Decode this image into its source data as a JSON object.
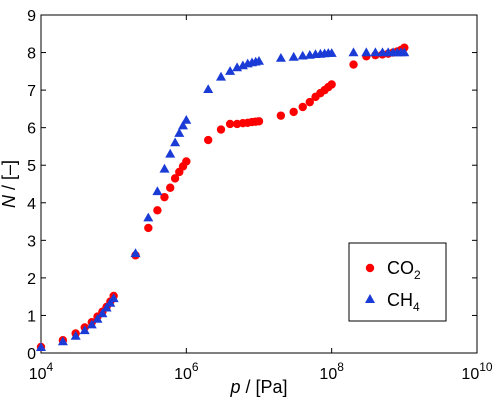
{
  "chart_data": {
    "type": "scatter",
    "title": "",
    "xlabel_var": "p",
    "xlabel_unit": " / [Pa]",
    "ylabel_var": "N",
    "ylabel_unit": " / [–]",
    "xscale": "log",
    "xlim": [
      10000,
      10000000000
    ],
    "ylim": [
      0,
      9
    ],
    "grid": false,
    "legend_position": "lower-right",
    "x_ticks": [
      {
        "value": 10000,
        "base": "10",
        "exp": "4"
      },
      {
        "value": 1000000,
        "base": "10",
        "exp": "6"
      },
      {
        "value": 100000000,
        "base": "10",
        "exp": "8"
      },
      {
        "value": 10000000000,
        "base": "10",
        "exp": "10"
      }
    ],
    "y_ticks": [
      {
        "value": 0,
        "label": "0"
      },
      {
        "value": 1,
        "label": "1"
      },
      {
        "value": 2,
        "label": "2"
      },
      {
        "value": 3,
        "label": "3"
      },
      {
        "value": 4,
        "label": "4"
      },
      {
        "value": 5,
        "label": "5"
      },
      {
        "value": 6,
        "label": "6"
      },
      {
        "value": 7,
        "label": "7"
      },
      {
        "value": 8,
        "label": "8"
      },
      {
        "value": 9,
        "label": "9"
      }
    ],
    "series": [
      {
        "name_base": "CO",
        "name_sub": "2",
        "marker": "circle",
        "color": "#ff0000",
        "x": [
          10000,
          20000,
          30000,
          40000,
          50000,
          60000,
          70000,
          80000,
          90000,
          100000,
          200000,
          300000,
          400000,
          500000,
          600000,
          700000,
          800000,
          900000,
          1000000,
          2000000,
          3000000,
          4000000,
          5000000,
          6000000,
          7000000,
          8000000,
          9000000,
          10000000,
          20000000,
          30000000,
          40000000,
          50000000,
          60000000,
          70000000,
          80000000,
          90000000,
          100000000,
          200000000,
          300000000,
          400000000,
          500000000,
          600000000,
          700000000,
          800000000,
          900000000,
          1000000000
        ],
        "y": [
          0.16,
          0.34,
          0.52,
          0.68,
          0.82,
          0.97,
          1.1,
          1.23,
          1.37,
          1.52,
          2.6,
          3.33,
          3.8,
          4.15,
          4.4,
          4.65,
          4.82,
          4.97,
          5.1,
          5.67,
          5.95,
          6.1,
          6.1,
          6.12,
          6.13,
          6.15,
          6.16,
          6.17,
          6.32,
          6.42,
          6.55,
          6.68,
          6.82,
          6.92,
          7.0,
          7.08,
          7.15,
          7.68,
          7.9,
          7.93,
          7.95,
          7.97,
          8.0,
          8.03,
          8.07,
          8.13
        ]
      },
      {
        "name_base": "CH",
        "name_sub": "4",
        "marker": "triangle",
        "color": "#1a3bd6",
        "x": [
          10000,
          20000,
          30000,
          40000,
          50000,
          60000,
          70000,
          80000,
          90000,
          100000,
          200000,
          300000,
          400000,
          500000,
          600000,
          700000,
          800000,
          900000,
          1000000,
          2000000,
          3000000,
          4000000,
          5000000,
          6000000,
          7000000,
          8000000,
          9000000,
          10000000,
          20000000,
          30000000,
          40000000,
          50000000,
          60000000,
          70000000,
          80000000,
          90000000,
          100000000,
          200000000,
          300000000,
          400000000,
          500000000,
          600000000,
          700000000,
          800000000,
          900000000,
          1000000000
        ],
        "y": [
          0.15,
          0.3,
          0.45,
          0.6,
          0.75,
          0.9,
          1.05,
          1.2,
          1.33,
          1.45,
          2.65,
          3.6,
          4.3,
          4.9,
          5.3,
          5.6,
          5.85,
          6.05,
          6.2,
          7.02,
          7.35,
          7.5,
          7.6,
          7.65,
          7.7,
          7.73,
          7.75,
          7.77,
          7.85,
          7.88,
          7.91,
          7.93,
          7.95,
          7.96,
          7.97,
          7.98,
          7.98,
          8.0,
          8.0,
          8.0,
          8.0,
          8.0,
          8.0,
          8.0,
          8.0,
          8.0
        ]
      }
    ]
  }
}
